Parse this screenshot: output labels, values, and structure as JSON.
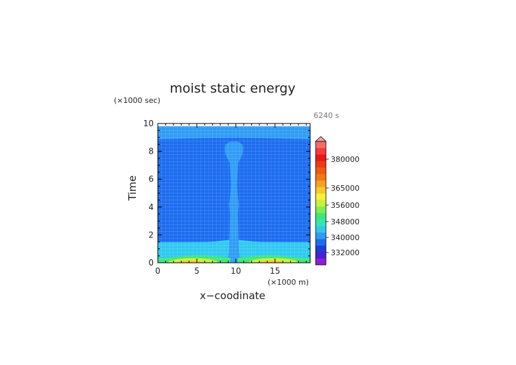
{
  "chart_data": {
    "type": "heatmap",
    "title": "moist static energy",
    "time_stamp": "6240 s",
    "xlabel": "x−coodinate",
    "xunit": "(×1000 m)",
    "ylabel": "Time",
    "yunit": "(×1000 sec)",
    "xlim": [
      0,
      19.5
    ],
    "ylim": [
      0,
      10
    ],
    "x_ticks": [
      0,
      5,
      10,
      15
    ],
    "y_ticks": [
      0,
      2,
      4,
      6,
      8,
      10
    ],
    "data_time_max": 9.8,
    "grid": true,
    "colorbar": {
      "placement": "right",
      "labels": [
        "380000",
        "365000",
        "356000",
        "348000",
        "340000",
        "332000"
      ],
      "bands": [
        {
          "color": "#8c1fd6"
        },
        {
          "color": "#4b1fd6"
        },
        {
          "color": "#1f3cd6"
        },
        {
          "color": "#1c6cf0"
        },
        {
          "color": "#2f9cf5"
        },
        {
          "color": "#2fc9f0"
        },
        {
          "color": "#35e6b0"
        },
        {
          "color": "#3ee67a"
        },
        {
          "color": "#7cf050"
        },
        {
          "color": "#c8f03a"
        },
        {
          "color": "#f5f03a"
        },
        {
          "color": "#f8c82a"
        },
        {
          "color": "#f8a020"
        },
        {
          "color": "#f07818"
        },
        {
          "color": "#f05a12"
        },
        {
          "color": "#f03a12"
        },
        {
          "color": "#e81818"
        },
        {
          "color": "#f83a3a"
        },
        {
          "color": "#f86a6a"
        }
      ],
      "overflow_color": "#f5a3a3"
    },
    "fields": {
      "background": {
        "label": "~340000",
        "color": "#1c6cf0"
      },
      "plume": {
        "label": "~344000",
        "color": "#2f9cf5",
        "profile": [
          [
            0.05,
            1.5
          ],
          [
            0.3,
            0.9
          ],
          [
            0.7,
            0.65
          ],
          [
            1.5,
            0.6
          ],
          [
            2.6,
            0.55
          ],
          [
            3.4,
            0.5
          ],
          [
            3.8,
            0.55
          ],
          [
            4.1,
            0.65
          ],
          [
            4.5,
            0.55
          ],
          [
            5.0,
            0.45
          ],
          [
            5.6,
            0.4
          ],
          [
            6.2,
            0.45
          ],
          [
            6.8,
            0.5
          ],
          [
            7.2,
            0.55
          ],
          [
            7.5,
            0.85
          ],
          [
            7.8,
            1.1
          ],
          [
            8.2,
            1.2
          ],
          [
            8.5,
            1.05
          ],
          [
            8.7,
            0.5
          ]
        ]
      },
      "top_band": {
        "label": "~344000",
        "color": "#2f9cf5",
        "y_range": [
          8.9,
          9.8
        ]
      },
      "surface_layer": {
        "label": "~348000",
        "color": "#2fc9f0",
        "y_top": 1.6
      },
      "lower_layer": {
        "label": "~352000",
        "color": "#3ee67a",
        "y_top": 0.55
      },
      "warm_core": {
        "label": "~356000",
        "color": "#c8f03a",
        "centers_x": [
          4.5,
          14.8
        ]
      },
      "hot_core": {
        "label": "~360000",
        "color": "#f8c82a",
        "centers_x": [
          4.2,
          14.5
        ]
      }
    }
  }
}
